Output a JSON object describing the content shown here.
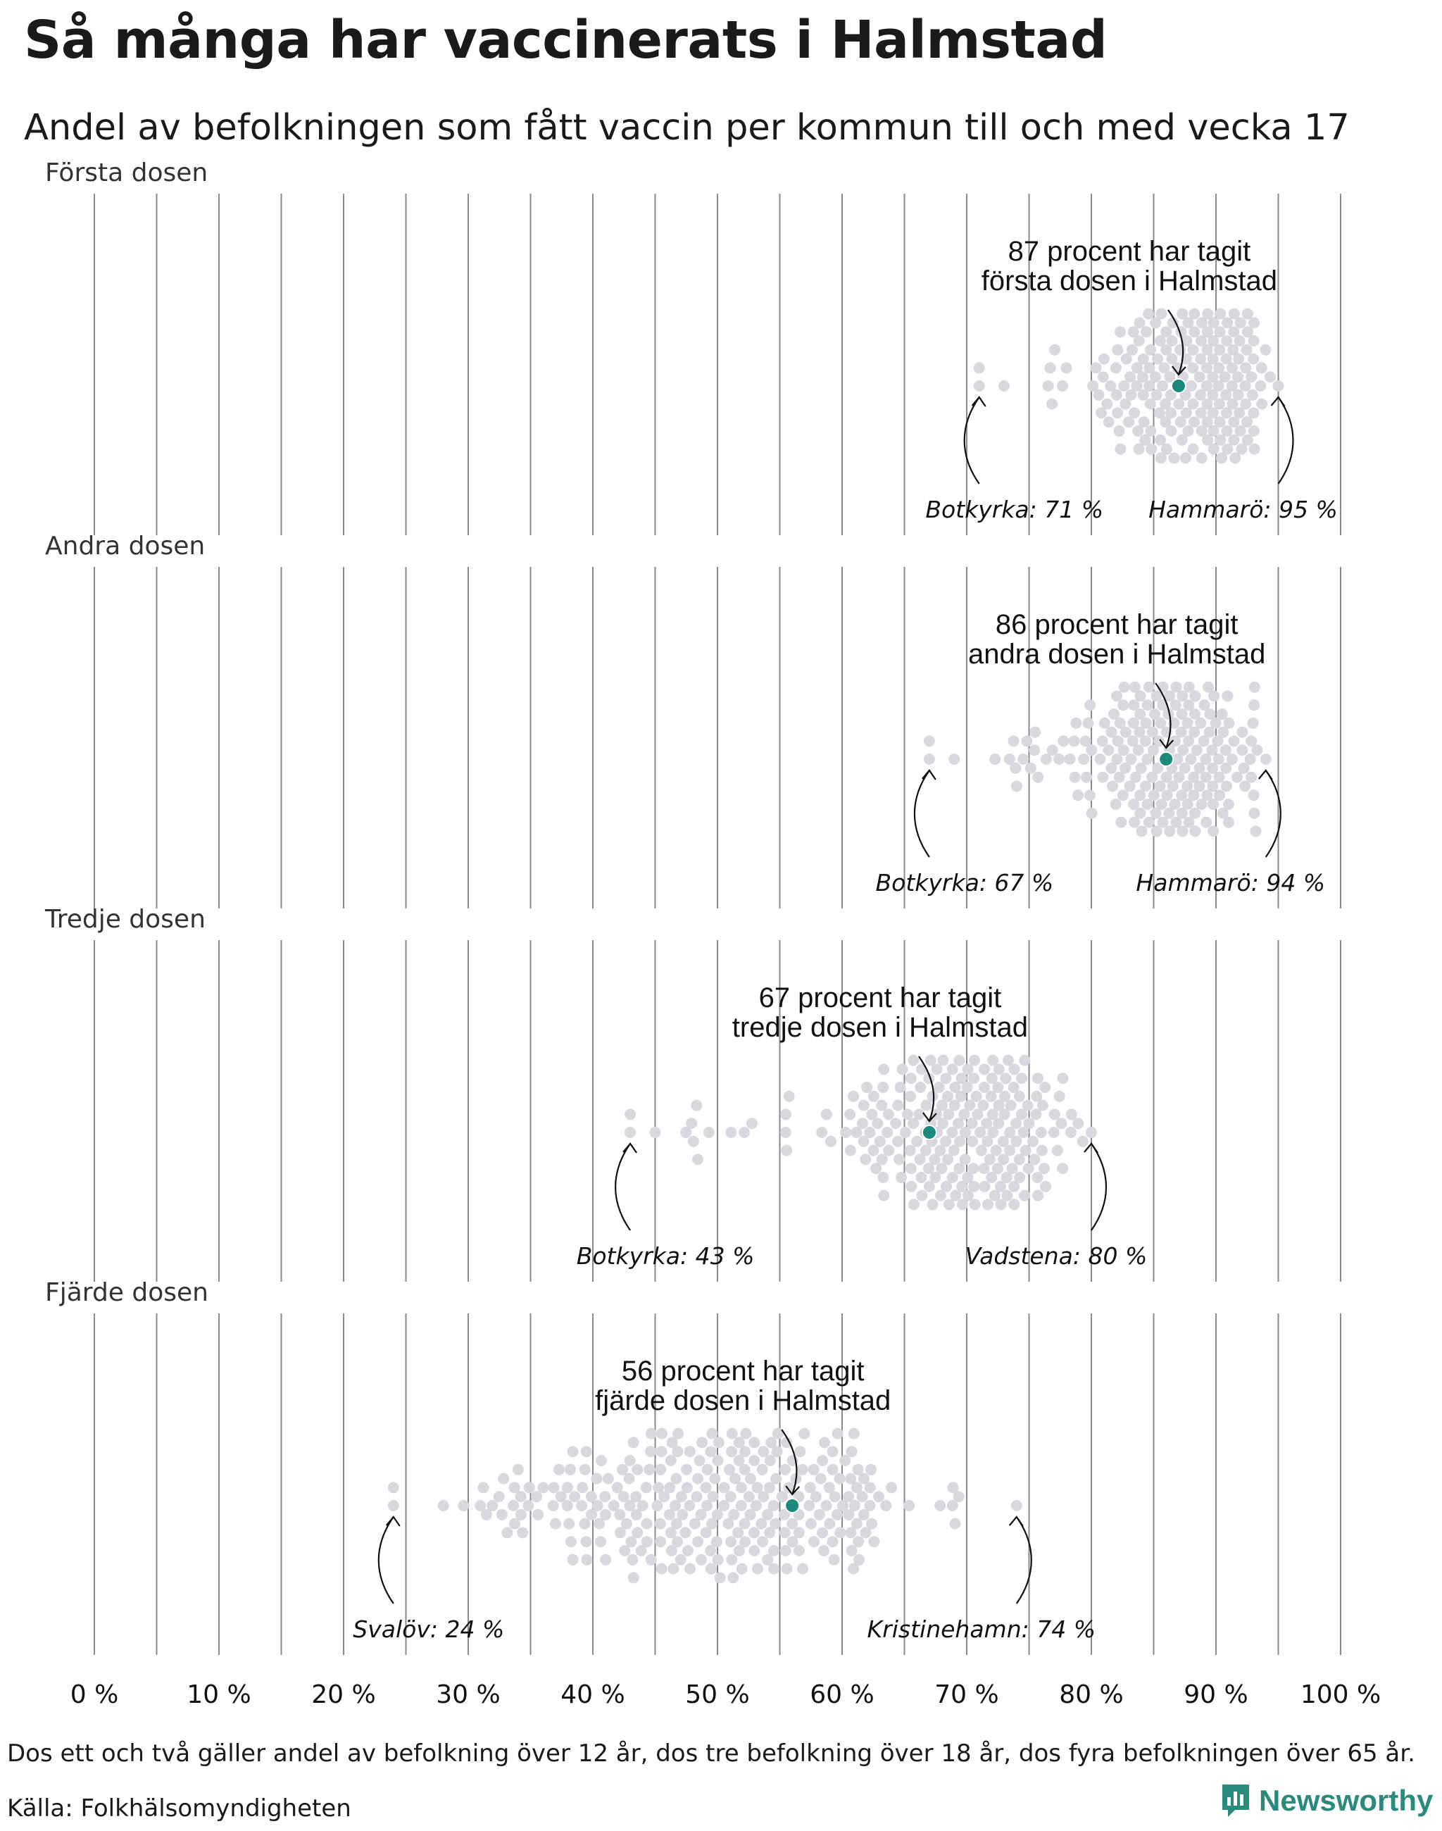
{
  "title": "Så många har vaccinerats i Halmstad",
  "subtitle": "Andel av befolkningen som fått vaccin per kommun till och med vecka 17",
  "footnote": "Dos ett och två gäller andel av befolkning över 12 år, dos tre befolkning över 18 år, dos fyra befolkningen över 65 år.",
  "source": "Källa: Folkhälsomyndigheten",
  "brand": "Newsworthy",
  "colors": {
    "dot": "#d8d8de",
    "highlight": "#1a8a7c",
    "grid": "#8a8a8a",
    "brand": "#2a8a7e"
  },
  "chart_data": {
    "type": "scatter",
    "subtype": "beeswarm",
    "x_ticks": [
      "0 %",
      "10 %",
      "20 %",
      "30 %",
      "40 %",
      "50 %",
      "60 %",
      "70 %",
      "80 %",
      "90 %",
      "100 %"
    ],
    "xlim": [
      0,
      100
    ],
    "grid": "vertical gridlines every 5 %",
    "panels": [
      {
        "label": "Första dosen",
        "highlight": {
          "value": 87,
          "callout": [
            "87 procent har tagit",
            "första dosen i Halmstad"
          ]
        },
        "min": {
          "value": 71,
          "label": "Botkyrka: 71 %"
        },
        "max": {
          "value": 95,
          "label": "Hammarö: 95 %"
        },
        "distribution": {
          "count": 290,
          "center": 88.5,
          "spread": 3.1,
          "low_tail": [
            71,
            73
          ]
        }
      },
      {
        "label": "Andra dosen",
        "highlight": {
          "value": 86,
          "callout": [
            "86 procent har tagit",
            "andra dosen i Halmstad"
          ]
        },
        "min": {
          "value": 67,
          "label": "Botkyrka: 67 %"
        },
        "max": {
          "value": 94,
          "label": "Hammarö: 94 %"
        },
        "distribution": {
          "count": 290,
          "center": 87,
          "spread": 3.5,
          "low_tail": [
            67,
            69
          ]
        }
      },
      {
        "label": "Tredje dosen",
        "highlight": {
          "value": 67,
          "callout": [
            "67 procent har tagit",
            "tredje dosen i Halmstad"
          ]
        },
        "min": {
          "value": 43,
          "label": "Botkyrka: 43 %"
        },
        "max": {
          "value": 80,
          "label": "Vadstena: 80 %"
        },
        "distribution": {
          "count": 290,
          "center": 69.5,
          "spread": 4.2,
          "low_tail": [
            43,
            45
          ]
        }
      },
      {
        "label": "Fjärde dosen",
        "highlight": {
          "value": 56,
          "callout": [
            "56 procent har tagit",
            "fjärde dosen i Halmstad"
          ]
        },
        "min": {
          "value": 24,
          "label": "Svalöv: 24 %"
        },
        "max": {
          "value": 74,
          "label": "Kristinehamn: 74 %"
        },
        "distribution": {
          "count": 290,
          "center": 51,
          "spread": 7.5,
          "low_tail": [
            24,
            28
          ]
        }
      }
    ]
  }
}
